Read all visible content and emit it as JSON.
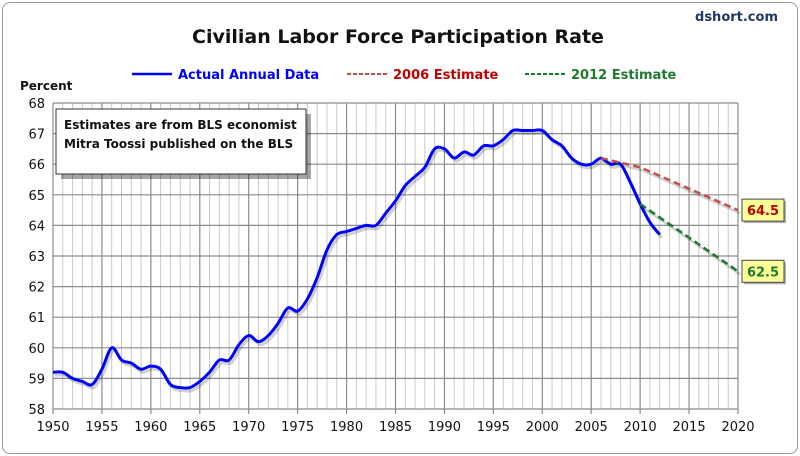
{
  "chart_data": {
    "type": "line",
    "title": "Civilian Labor Force Participation Rate",
    "source": "dshort.com",
    "ylabel": "Percent",
    "xlabel": "",
    "xlim": [
      1950,
      2020
    ],
    "ylim": [
      58,
      68
    ],
    "x_ticks": [
      1950,
      1955,
      1960,
      1965,
      1970,
      1975,
      1980,
      1985,
      1990,
      1995,
      2000,
      2005,
      2010,
      2015,
      2020
    ],
    "y_ticks": [
      58,
      59,
      60,
      61,
      62,
      63,
      64,
      65,
      66,
      67,
      68
    ],
    "grid": true,
    "legend_placement": "top",
    "annotation": [
      "Estimates are from  BLS economist",
      "Mitra Toossi published on the BLS"
    ],
    "series": [
      {
        "name": "Actual Annual Data",
        "color": "#0000ff",
        "style": "solid",
        "x": [
          1950,
          1951,
          1952,
          1953,
          1954,
          1955,
          1956,
          1957,
          1958,
          1959,
          1960,
          1961,
          1962,
          1963,
          1964,
          1965,
          1966,
          1967,
          1968,
          1969,
          1970,
          1971,
          1972,
          1973,
          1974,
          1975,
          1976,
          1977,
          1978,
          1979,
          1980,
          1981,
          1982,
          1983,
          1984,
          1985,
          1986,
          1987,
          1988,
          1989,
          1990,
          1991,
          1992,
          1993,
          1994,
          1995,
          1996,
          1997,
          1998,
          1999,
          2000,
          2001,
          2002,
          2003,
          2004,
          2005,
          2006,
          2007,
          2008,
          2009,
          2010,
          2011,
          2012
        ],
        "values": [
          59.2,
          59.2,
          59.0,
          58.9,
          58.8,
          59.3,
          60.0,
          59.6,
          59.5,
          59.3,
          59.4,
          59.3,
          58.8,
          58.7,
          58.7,
          58.9,
          59.2,
          59.6,
          59.6,
          60.1,
          60.4,
          60.2,
          60.4,
          60.8,
          61.3,
          61.2,
          61.6,
          62.3,
          63.2,
          63.7,
          63.8,
          63.9,
          64.0,
          64.0,
          64.4,
          64.8,
          65.3,
          65.6,
          65.9,
          66.5,
          66.5,
          66.2,
          66.4,
          66.3,
          66.6,
          66.6,
          66.8,
          67.1,
          67.1,
          67.1,
          67.1,
          66.8,
          66.6,
          66.2,
          66.0,
          66.0,
          66.2,
          66.0,
          66.0,
          65.4,
          64.7,
          64.1,
          63.7
        ]
      },
      {
        "name": "2006 Estimate",
        "color": "#c0504d",
        "style": "dashed",
        "x": [
          2006,
          2010,
          2020
        ],
        "values": [
          66.2,
          65.9,
          64.5
        ],
        "end_label": "64.5"
      },
      {
        "name": "2012 Estimate",
        "color": "#1e7a2e",
        "style": "dashed",
        "x": [
          2010,
          2020
        ],
        "values": [
          64.7,
          62.5
        ],
        "end_label": "62.5"
      }
    ]
  }
}
